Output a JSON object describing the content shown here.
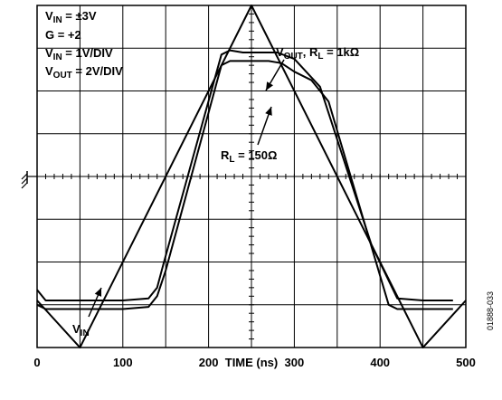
{
  "chart_data": {
    "type": "line",
    "xlabel": "TIME (ns)",
    "ylabel": "",
    "xlim": [
      0,
      500
    ],
    "x_ticks": [
      "0",
      "100",
      "200",
      "300",
      "400",
      "500"
    ],
    "grid": true,
    "series": [
      {
        "name": "V_IN",
        "x": [
          0,
          50,
          250,
          450,
          500
        ],
        "y": [
          -2.9,
          -4.0,
          4.0,
          -4.0,
          -2.9
        ]
      },
      {
        "name": "V_OUT, R_L = 1kΩ",
        "x": [
          0,
          10,
          50,
          100,
          130,
          140,
          148,
          215,
          225,
          240,
          260,
          280,
          300,
          330,
          390,
          420,
          450,
          485
        ],
        "y": [
          -2.65,
          -2.9,
          -2.9,
          -2.9,
          -2.85,
          -2.6,
          -2.0,
          2.85,
          2.95,
          2.9,
          2.9,
          2.9,
          2.75,
          2.1,
          -1.6,
          -2.85,
          -2.9,
          -2.9
        ]
      },
      {
        "name": "R_L = 150Ω",
        "x": [
          0,
          10,
          50,
          100,
          130,
          140,
          150,
          215,
          225,
          240,
          270,
          285,
          300,
          320,
          340,
          410,
          420,
          450,
          485
        ],
        "y": [
          -3.0,
          -3.1,
          -3.1,
          -3.1,
          -3.05,
          -2.8,
          -2.2,
          2.6,
          2.7,
          2.7,
          2.7,
          2.65,
          2.45,
          2.25,
          1.75,
          -3.0,
          -3.1,
          -3.1,
          -3.1
        ]
      }
    ],
    "annotations": {
      "line1": {
        "main": "V",
        "sub": "IN",
        "rest": " = ±3V"
      },
      "line2": "G = +2",
      "line3": {
        "main": "V",
        "sub": "IN",
        "rest": " = 1V/DIV"
      },
      "line4": {
        "main": "V",
        "sub": "OUT",
        "rest": " = 2V/DIV"
      },
      "vout_label": {
        "main": "V",
        "sub": "OUT",
        "mid": ", R",
        "sub2": "L",
        "rest": " = 1kΩ"
      },
      "rl150_label": {
        "main": "R",
        "sub": "L",
        "rest": " = 150Ω"
      },
      "vin_label": {
        "main": "V",
        "sub": "IN"
      }
    },
    "figure_id": "01888-033"
  }
}
